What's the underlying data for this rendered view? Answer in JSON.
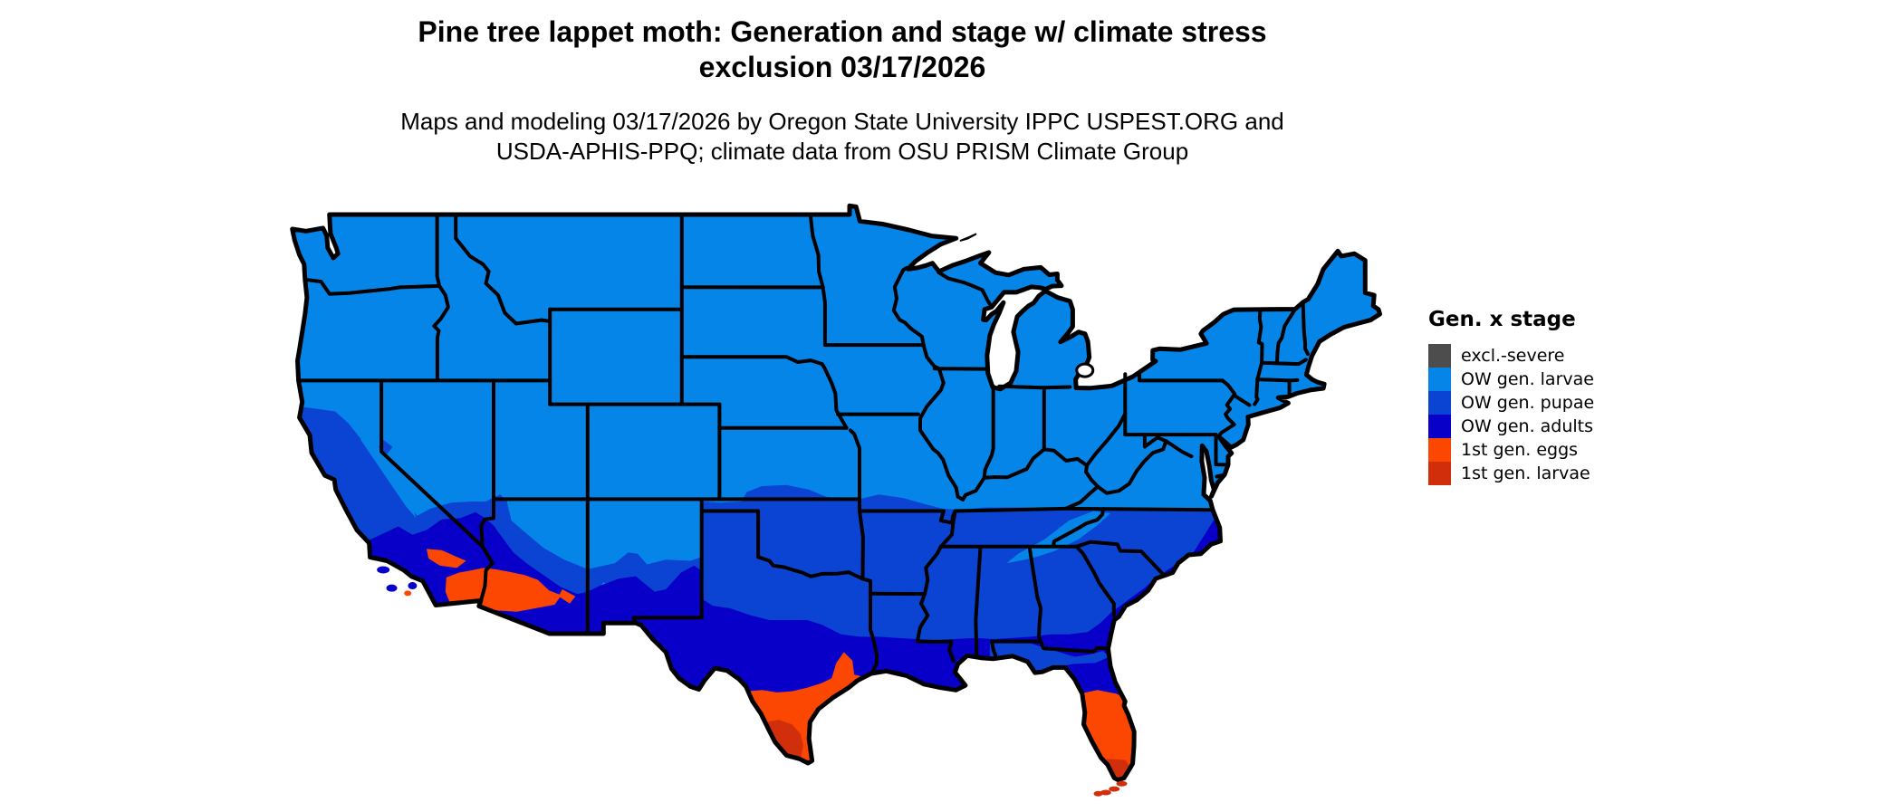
{
  "title": {
    "line1": "Pine tree lappet moth: Generation and stage w/ climate stress",
    "line2": "exclusion 03/17/2026"
  },
  "subtitle": {
    "line1": "Maps and modeling 03/17/2026 by Oregon State University IPPC USPEST.ORG and",
    "line2": "USDA-APHIS-PPQ; climate data from OSU PRISM Climate Group"
  },
  "legend": {
    "title": "Gen. x stage",
    "entries": [
      {
        "label": "excl.-severe",
        "color": "#4D4D4D"
      },
      {
        "label": "OW gen. larvae",
        "color": "#0685E8"
      },
      {
        "label": "OW gen. pupae",
        "color": "#0B44D2"
      },
      {
        "label": "OW gen. adults",
        "color": "#0800C8"
      },
      {
        "label": "1st gen. eggs",
        "color": "#FC4703"
      },
      {
        "label": "1st gen. larvae",
        "color": "#D12F0B"
      }
    ]
  },
  "map": {
    "region": "Contiguous United States",
    "border_color": "#000000",
    "background": "#FFFFFF",
    "depicted_distribution": {
      "OW gen. larvae": "northern and central US, Rockies, Appalachians",
      "OW gen. pupae": "California, Southwest, southern Plains, Southeast north of gulf",
      "OW gen. adults": "southern California deserts, south Texas-Gulf Coast band, north Florida, coastal Carolinas",
      "1st gen. eggs": "far south Texas coast, central/south Florida, Yuma-Phoenix desert",
      "1st gen. larvae": "lower Rio Grande valley, south Florida tip and Keys"
    }
  }
}
